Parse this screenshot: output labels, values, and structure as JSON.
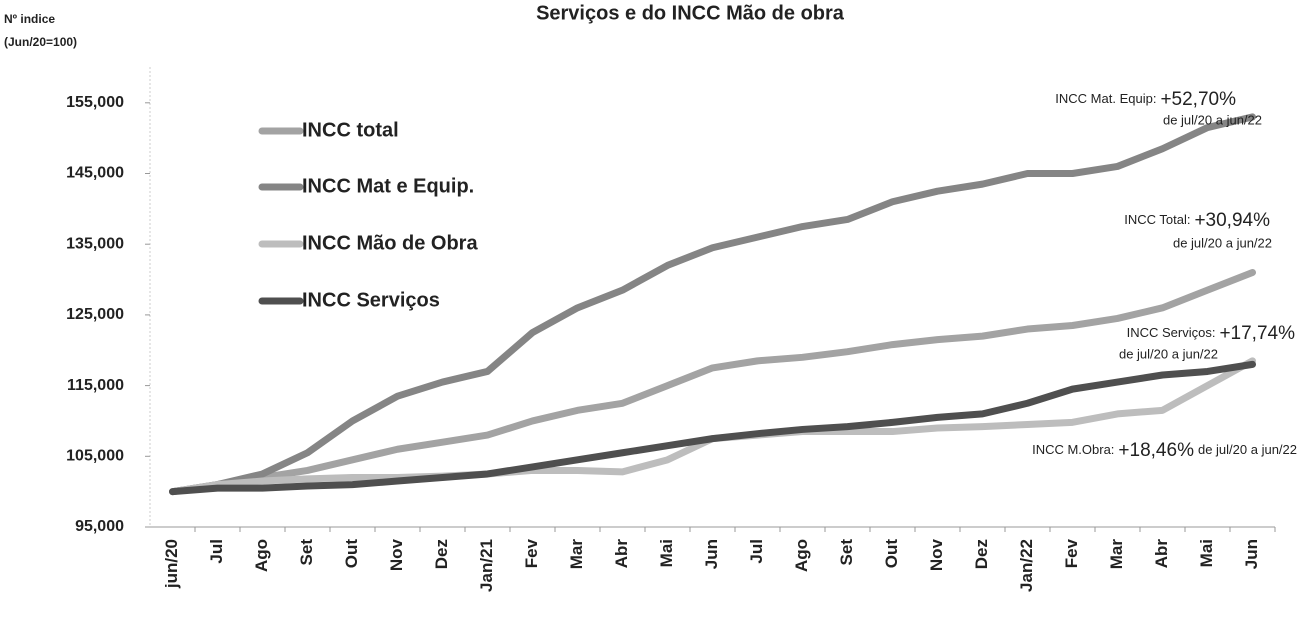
{
  "chart_data": {
    "type": "line",
    "title": "Serviços e do INCC Mão de obra",
    "y_label": [
      "Nº indice",
      "(Jun/20=100)"
    ],
    "categories": [
      "jun/20",
      "Jul",
      "Ago",
      "Set",
      "Out",
      "Nov",
      "Dez",
      "Jan/21",
      "Fev",
      "Mar",
      "Abr",
      "Mai",
      "Jun",
      "Jul",
      "Ago",
      "Set",
      "Out",
      "Nov",
      "Dez",
      "Jan/22",
      "Fev",
      "Mar",
      "Abr",
      "Mai",
      "Jun"
    ],
    "series": [
      {
        "name": "INCC total",
        "color": "#a3a3a3",
        "values": [
          100,
          101,
          102,
          103,
          104.5,
          106,
          107,
          108,
          110,
          111.5,
          112.5,
          115,
          117.5,
          118.5,
          119,
          119.8,
          120.8,
          121.5,
          122,
          123,
          123.5,
          124.5,
          126,
          128.5,
          131
        ]
      },
      {
        "name": "INCC Mat e Equip.",
        "color": "#858585",
        "values": [
          100,
          101,
          102.5,
          105.5,
          110,
          113.5,
          115.5,
          117,
          122.5,
          126,
          128.5,
          132,
          134.5,
          136,
          137.5,
          138.5,
          141,
          142.5,
          143.5,
          145,
          145,
          146,
          148.5,
          151.5,
          153
        ]
      },
      {
        "name": "INCC Mão de Obra",
        "color": "#bdbdbd",
        "values": [
          100,
          101,
          101.5,
          101.8,
          102,
          102,
          102.2,
          102.5,
          103,
          103,
          102.8,
          104.5,
          107.5,
          108,
          108.5,
          108.5,
          108.5,
          109,
          109.2,
          109.5,
          109.8,
          111,
          111.5,
          115,
          118.5
        ]
      },
      {
        "name": "INCC Serviços",
        "color": "#4f4f4f",
        "values": [
          100,
          100.5,
          100.5,
          100.8,
          101,
          101.5,
          102,
          102.5,
          103.5,
          104.5,
          105.5,
          106.5,
          107.5,
          108.2,
          108.8,
          109.2,
          109.8,
          110.5,
          111,
          112.5,
          114.5,
          115.5,
          116.5,
          117,
          118
        ]
      }
    ],
    "ylim": [
      95,
      160
    ],
    "yticks": [
      {
        "value": 95,
        "label": "95,000"
      },
      {
        "value": 105,
        "label": "105,000"
      },
      {
        "value": 115,
        "label": "115,000"
      },
      {
        "value": 125,
        "label": "125,000"
      },
      {
        "value": 135,
        "label": "135,000"
      },
      {
        "value": 145,
        "label": "145,000"
      },
      {
        "value": 155,
        "label": "155,000"
      }
    ],
    "annotations": [
      {
        "label": "INCC Mat. Equip:",
        "value": "+52,70%",
        "period": "de jul/20 a jun/22"
      },
      {
        "label": "INCC Total:",
        "value": "+30,94%",
        "period": "de jul/20 a jun/22"
      },
      {
        "label": "INCC Serviços:",
        "value": "+17,74%",
        "period": "de jul/20 a jun/22"
      },
      {
        "label": "INCC M.Obra:",
        "value": "+18,46%",
        "period": "de jul/20 a jun/22"
      }
    ]
  }
}
